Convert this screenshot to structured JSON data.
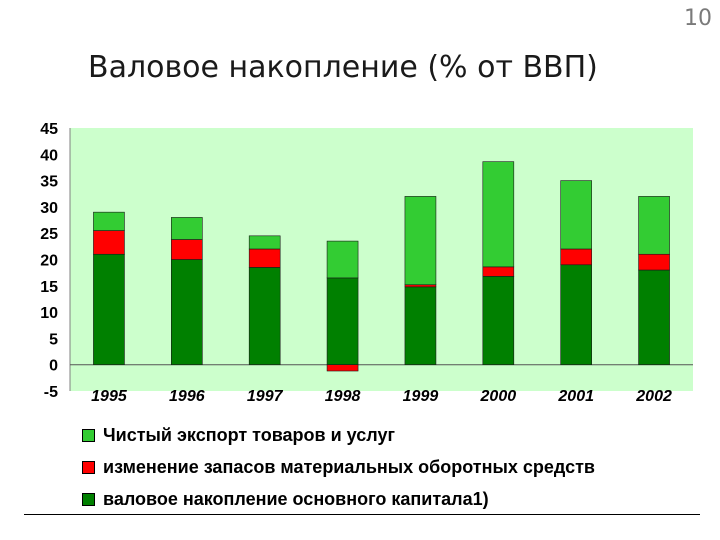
{
  "slide": {
    "number": "10",
    "title": "Валовое накопление (% от ВВП)"
  },
  "colors": {
    "plot_background": "#ccffcc",
    "net_exports": "#33cc33",
    "inventory_change": "#ff0000",
    "fixed_capital": "#008000"
  },
  "chart_data": {
    "type": "bar",
    "stacked": true,
    "title": "",
    "xlabel": "",
    "ylabel": "",
    "ylim": [
      -5,
      45
    ],
    "yticks": [
      45,
      40,
      35,
      30,
      25,
      20,
      15,
      10,
      5,
      0,
      -5
    ],
    "grid": false,
    "legend_placement": "bottom",
    "categories": [
      "1995",
      "1996",
      "1997",
      "1998",
      "1999",
      "2000",
      "2001",
      "2002"
    ],
    "series": [
      {
        "name": "валовое накопление основного капитала1)",
        "color": "#008000",
        "values": [
          21,
          20,
          18.5,
          16.5,
          14.8,
          16.8,
          19,
          18
        ]
      },
      {
        "name": "изменение запасов материальных оборотных средств",
        "color": "#ff0000",
        "values": [
          4.5,
          3.8,
          3.5,
          -1.2,
          0.4,
          1.8,
          3,
          3
        ]
      },
      {
        "name": "Чистый экспорт товаров и услуг",
        "color": "#33cc33",
        "values": [
          3.5,
          4.2,
          2.5,
          7,
          16.8,
          20,
          13,
          11
        ]
      }
    ]
  },
  "legend": [
    {
      "label": "Чистый экспорт товаров и услуг",
      "color": "#33cc33"
    },
    {
      "label": "изменение запасов материальных оборотных средств",
      "color": "#ff0000"
    },
    {
      "label": "валовое накопление основного капитала1)",
      "color": "#008000"
    }
  ]
}
